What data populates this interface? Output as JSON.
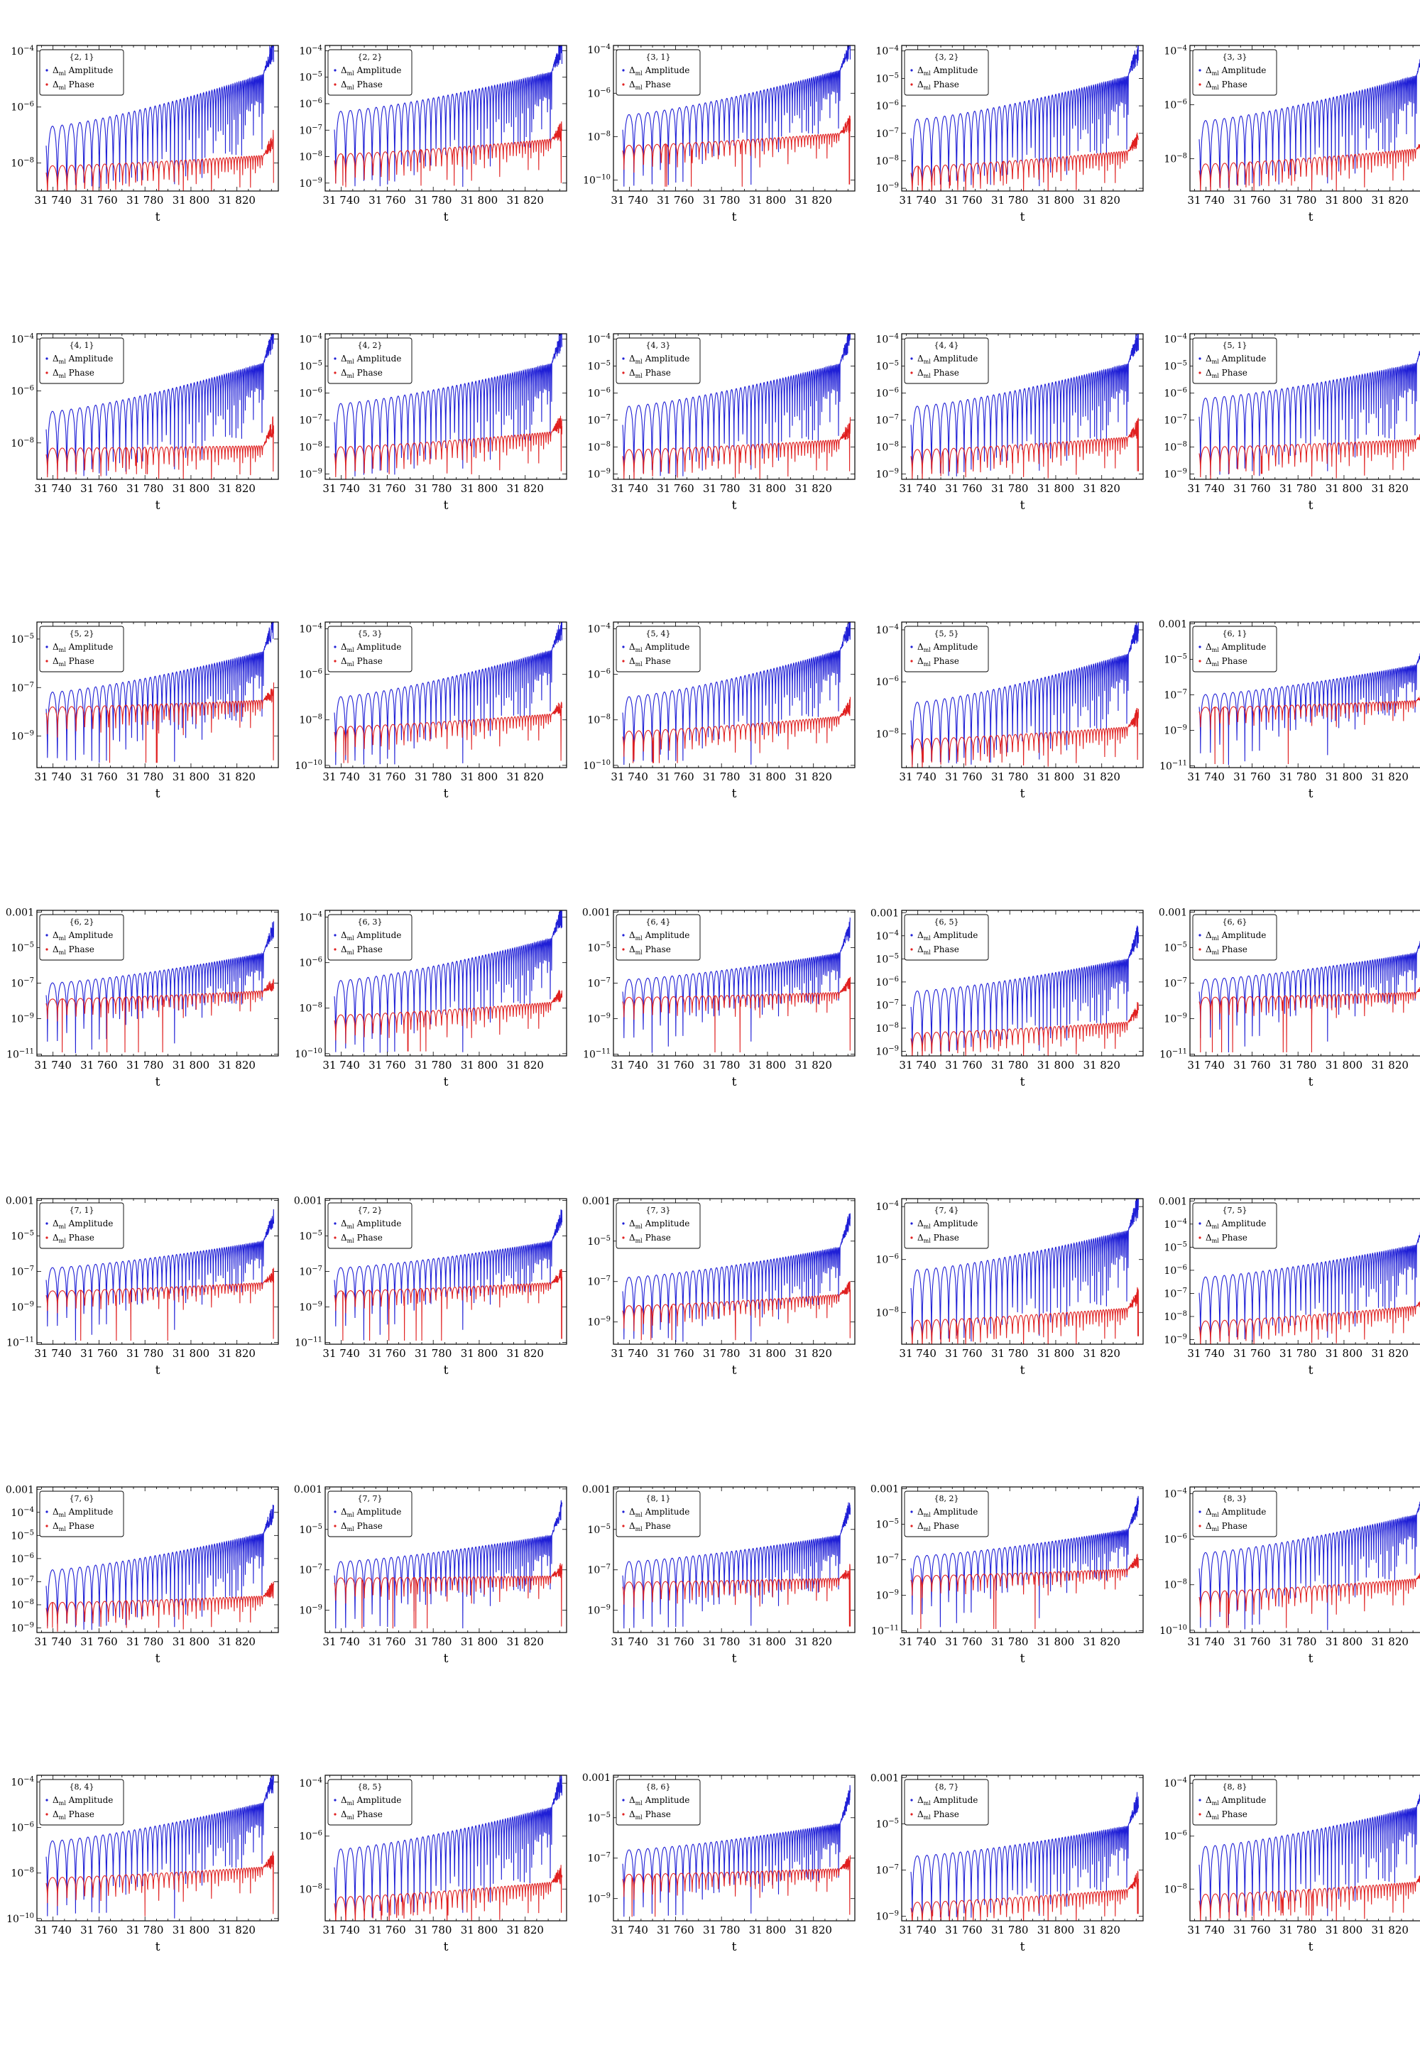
{
  "shared": {
    "xlabel": "t",
    "x_ticks": [
      31740,
      31760,
      31780,
      31800,
      31820
    ],
    "x_tick_labels": [
      "31 740",
      "31 760",
      "31 780",
      "31 800",
      "31 820"
    ],
    "xlim": [
      31733,
      31838
    ],
    "y_scale": "log",
    "legend": [
      {
        "prefix": "Δ",
        "sub": "ml",
        "text": " Amplitude",
        "color": "#1f1fd6"
      },
      {
        "prefix": "Δ",
        "sub": "ml",
        "text": " Phase",
        "color": "#e02020"
      }
    ],
    "legend_position": "top-left",
    "colors": {
      "amplitude": "#1f1fd6",
      "phase": "#e02020",
      "frame": "#000000"
    }
  },
  "chart_data": [
    {
      "type": "line",
      "title": "{2, 1}",
      "ylim_exp": [
        -9,
        -3.8
      ],
      "ytick_exp": [
        -4,
        -6,
        -8
      ],
      "amp": {
        "start": -6.7,
        "end": -4.7,
        "burst": -3.8
      },
      "phase": {
        "start": -8.1,
        "end": -7.7,
        "burst": -7.2
      }
    },
    {
      "type": "line",
      "title": "{2, 2}",
      "ylim_exp": [
        -9.3,
        -3.8
      ],
      "ytick_exp": [
        -4,
        -5,
        -6,
        -7,
        -8,
        -9
      ],
      "amp": {
        "start": -6.3,
        "end": -4.7,
        "burst": -3.9
      },
      "phase": {
        "start": -7.9,
        "end": -7.3,
        "burst": -7.0
      }
    },
    {
      "type": "line",
      "title": "{3, 1}",
      "ylim_exp": [
        -10.5,
        -3.8
      ],
      "ytick_exp": [
        -4,
        -6,
        -8,
        -10
      ],
      "amp": {
        "start": -7.0,
        "end": -4.8,
        "burst": -3.9
      },
      "phase": {
        "start": -8.4,
        "end": -7.8,
        "burst": -7.4
      }
    },
    {
      "type": "line",
      "title": "{3, 2}",
      "ylim_exp": [
        -9.1,
        -3.8
      ],
      "ytick_exp": [
        -4,
        -5,
        -6,
        -7,
        -8,
        -9
      ],
      "amp": {
        "start": -6.5,
        "end": -4.8,
        "burst": -3.9
      },
      "phase": {
        "start": -8.2,
        "end": -7.6,
        "burst": -7.2
      }
    },
    {
      "type": "line",
      "title": "{3, 3}",
      "ylim_exp": [
        -9.2,
        -3.8
      ],
      "ytick_exp": [
        -4,
        -6,
        -8
      ],
      "amp": {
        "start": -6.6,
        "end": -4.8,
        "burst": -3.8
      },
      "phase": {
        "start": -8.2,
        "end": -7.6,
        "burst": -7.3
      }
    },
    {
      "type": "line",
      "title": "{4, 1}",
      "ylim_exp": [
        -9.4,
        -3.8
      ],
      "ytick_exp": [
        -4,
        -6,
        -8
      ],
      "amp": {
        "start": -6.8,
        "end": -4.8,
        "burst": -3.9
      },
      "phase": {
        "start": -8.2,
        "end": -8.1,
        "burst": -7.3
      }
    },
    {
      "type": "line",
      "title": "{4, 2}",
      "ylim_exp": [
        -9.2,
        -3.8
      ],
      "ytick_exp": [
        -4,
        -5,
        -6,
        -7,
        -8,
        -9
      ],
      "amp": {
        "start": -6.4,
        "end": -4.8,
        "burst": -3.9
      },
      "phase": {
        "start": -8.0,
        "end": -7.4,
        "burst": -7.1
      }
    },
    {
      "type": "line",
      "title": "{4, 3}",
      "ylim_exp": [
        -9.2,
        -3.8
      ],
      "ytick_exp": [
        -4,
        -5,
        -6,
        -7,
        -8,
        -9
      ],
      "amp": {
        "start": -6.5,
        "end": -4.8,
        "burst": -3.9
      },
      "phase": {
        "start": -8.1,
        "end": -7.7,
        "burst": -7.3
      }
    },
    {
      "type": "line",
      "title": "{4, 4}",
      "ylim_exp": [
        -9.2,
        -3.8
      ],
      "ytick_exp": [
        -4,
        -5,
        -6,
        -7,
        -8,
        -9
      ],
      "amp": {
        "start": -6.5,
        "end": -4.8,
        "burst": -3.9
      },
      "phase": {
        "start": -8.1,
        "end": -7.6,
        "burst": -7.3
      }
    },
    {
      "type": "line",
      "title": "{5, 1}",
      "ylim_exp": [
        -9.2,
        -3.8
      ],
      "ytick_exp": [
        -4,
        -5,
        -6,
        -7,
        -8,
        -9
      ],
      "amp": {
        "start": -6.2,
        "end": -4.8,
        "burst": -3.9
      },
      "phase": {
        "start": -8.0,
        "end": -7.7,
        "burst": -7.4
      }
    },
    {
      "type": "line",
      "title": "{5, 2}",
      "ylim_exp": [
        -10.3,
        -4.3
      ],
      "ytick_exp": [
        -5,
        -7,
        -9
      ],
      "amp": {
        "start": -7.2,
        "end": -5.4,
        "burst": -4.4
      },
      "phase": {
        "start": -7.8,
        "end": -7.5,
        "burst": -7.2
      }
    },
    {
      "type": "line",
      "title": "{5, 3}",
      "ylim_exp": [
        -10.1,
        -3.7
      ],
      "ytick_exp": [
        -4,
        -6,
        -8,
        -10
      ],
      "amp": {
        "start": -7.0,
        "end": -4.8,
        "burst": -3.9
      },
      "phase": {
        "start": -8.3,
        "end": -7.7,
        "burst": -7.4
      }
    },
    {
      "type": "line",
      "title": "{5, 4}",
      "ylim_exp": [
        -10.1,
        -3.7
      ],
      "ytick_exp": [
        -4,
        -6,
        -8,
        -10
      ],
      "amp": {
        "start": -7.0,
        "end": -4.8,
        "burst": -3.9
      },
      "phase": {
        "start": -8.5,
        "end": -7.8,
        "burst": -7.4
      }
    },
    {
      "type": "line",
      "title": "{5, 5}",
      "ylim_exp": [
        -9.3,
        -3.7
      ],
      "ytick_exp": [
        -4,
        -6,
        -8
      ],
      "amp": {
        "start": -6.8,
        "end": -4.8,
        "burst": -3.9
      },
      "phase": {
        "start": -8.2,
        "end": -7.7,
        "burst": -7.3
      }
    },
    {
      "type": "line",
      "title": "{6, 1}",
      "ylim_exp": [
        -11.1,
        -2.9
      ],
      "ytick_exp": [
        -3,
        -5,
        -7,
        -9,
        -11
      ],
      "amp": {
        "start": -7.0,
        "end": -5.2,
        "burst": -3.9
      },
      "phase": {
        "start": -7.7,
        "end": -7.3,
        "burst": -6.9
      }
    },
    {
      "type": "line",
      "title": "{6, 2}",
      "ylim_exp": [
        -11.1,
        -2.9
      ],
      "ytick_exp": [
        -3,
        -5,
        -7,
        -9,
        -11
      ],
      "amp": {
        "start": -7.0,
        "end": -5.2,
        "burst": -3.9
      },
      "phase": {
        "start": -7.9,
        "end": -7.4,
        "burst": -7.0
      }
    },
    {
      "type": "line",
      "title": "{6, 3}",
      "ylim_exp": [
        -10.1,
        -3.7
      ],
      "ytick_exp": [
        -4,
        -6,
        -8,
        -10
      ],
      "amp": {
        "start": -6.8,
        "end": -4.8,
        "burst": -3.9
      },
      "phase": {
        "start": -8.3,
        "end": -7.7,
        "burst": -7.4
      }
    },
    {
      "type": "line",
      "title": "{6, 4}",
      "ylim_exp": [
        -11.1,
        -2.9
      ],
      "ytick_exp": [
        -3,
        -5,
        -7,
        -9,
        -11
      ],
      "amp": {
        "start": -6.8,
        "end": -5.2,
        "burst": -3.9
      },
      "phase": {
        "start": -7.8,
        "end": -7.5,
        "burst": -7.0
      }
    },
    {
      "type": "line",
      "title": "{6, 5}",
      "ylim_exp": [
        -9.2,
        -2.9
      ],
      "ytick_exp": [
        -3,
        -4,
        -5,
        -6,
        -7,
        -8,
        -9
      ],
      "amp": {
        "start": -6.4,
        "end": -4.9,
        "burst": -3.9
      },
      "phase": {
        "start": -8.2,
        "end": -7.7,
        "burst": -7.2
      }
    },
    {
      "type": "line",
      "title": "{6, 6}",
      "ylim_exp": [
        -11.1,
        -2.9
      ],
      "ytick_exp": [
        -3,
        -5,
        -7,
        -9,
        -11
      ],
      "amp": {
        "start": -6.8,
        "end": -5.2,
        "burst": -3.9
      },
      "phase": {
        "start": -7.8,
        "end": -7.5,
        "burst": -7.0
      }
    },
    {
      "type": "line",
      "title": "{7, 1}",
      "ylim_exp": [
        -11.1,
        -2.9
      ],
      "ytick_exp": [
        -3,
        -5,
        -7,
        -9,
        -11
      ],
      "amp": {
        "start": -6.8,
        "end": -5.2,
        "burst": -3.9
      },
      "phase": {
        "start": -8.1,
        "end": -7.6,
        "burst": -7.2
      }
    },
    {
      "type": "line",
      "title": "{7, 2}",
      "ylim_exp": [
        -11.1,
        -2.9
      ],
      "ytick_exp": [
        -3,
        -5,
        -7,
        -9,
        -11
      ],
      "amp": {
        "start": -6.8,
        "end": -5.2,
        "burst": -3.9
      },
      "phase": {
        "start": -8.1,
        "end": -7.6,
        "burst": -7.2
      }
    },
    {
      "type": "line",
      "title": "{7, 3}",
      "ylim_exp": [
        -10.1,
        -2.9
      ],
      "ytick_exp": [
        -3,
        -5,
        -7,
        -9
      ],
      "amp": {
        "start": -6.8,
        "end": -5.2,
        "burst": -3.9
      },
      "phase": {
        "start": -8.2,
        "end": -7.6,
        "burst": -7.2
      }
    },
    {
      "type": "line",
      "title": "{7, 4}",
      "ylim_exp": [
        -9.2,
        -3.7
      ],
      "ytick_exp": [
        -4,
        -6,
        -8
      ],
      "amp": {
        "start": -6.4,
        "end": -4.8,
        "burst": -3.9
      },
      "phase": {
        "start": -8.3,
        "end": -7.8,
        "burst": -7.4
      }
    },
    {
      "type": "line",
      "title": "{7, 5}",
      "ylim_exp": [
        -9.2,
        -2.9
      ],
      "ytick_exp": [
        -3,
        -4,
        -5,
        -6,
        -7,
        -8,
        -9
      ],
      "amp": {
        "start": -6.3,
        "end": -4.8,
        "burst": -3.9
      },
      "phase": {
        "start": -8.2,
        "end": -7.5,
        "burst": -7.3
      }
    },
    {
      "type": "line",
      "title": "{7, 6}",
      "ylim_exp": [
        -9.2,
        -2.9
      ],
      "ytick_exp": [
        -3,
        -4,
        -5,
        -6,
        -7,
        -8,
        -9
      ],
      "amp": {
        "start": -6.5,
        "end": -4.8,
        "burst": -3.9
      },
      "phase": {
        "start": -7.9,
        "end": -7.6,
        "burst": -7.3
      }
    },
    {
      "type": "line",
      "title": "{7, 7}",
      "ylim_exp": [
        -10.1,
        -2.9
      ],
      "ytick_exp": [
        -3,
        -5,
        -7,
        -9
      ],
      "amp": {
        "start": -6.6,
        "end": -5.2,
        "burst": -3.9
      },
      "phase": {
        "start": -7.4,
        "end": -7.3,
        "burst": -7.0
      }
    },
    {
      "type": "line",
      "title": "{8, 1}",
      "ylim_exp": [
        -10.1,
        -2.9
      ],
      "ytick_exp": [
        -3,
        -5,
        -7,
        -9
      ],
      "amp": {
        "start": -6.6,
        "end": -5.2,
        "burst": -3.9
      },
      "phase": {
        "start": -7.6,
        "end": -7.4,
        "burst": -7.1
      }
    },
    {
      "type": "line",
      "title": "{8, 2}",
      "ylim_exp": [
        -11.1,
        -2.9
      ],
      "ytick_exp": [
        -3,
        -5,
        -7,
        -9,
        -11
      ],
      "amp": {
        "start": -6.8,
        "end": -5.2,
        "burst": -3.9
      },
      "phase": {
        "start": -7.9,
        "end": -7.5,
        "burst": -7.0
      }
    },
    {
      "type": "line",
      "title": "{8, 3}",
      "ylim_exp": [
        -10.1,
        -3.7
      ],
      "ytick_exp": [
        -4,
        -6,
        -8,
        -10
      ],
      "amp": {
        "start": -6.6,
        "end": -4.8,
        "burst": -3.9
      },
      "phase": {
        "start": -8.3,
        "end": -7.7,
        "burst": -7.4
      }
    },
    {
      "type": "line",
      "title": "{8, 4}",
      "ylim_exp": [
        -10.1,
        -3.7
      ],
      "ytick_exp": [
        -4,
        -6,
        -8,
        -10
      ],
      "amp": {
        "start": -6.6,
        "end": -4.8,
        "burst": -3.9
      },
      "phase": {
        "start": -8.2,
        "end": -7.7,
        "burst": -7.4
      }
    },
    {
      "type": "line",
      "title": "{8, 5}",
      "ylim_exp": [
        -9.2,
        -3.7
      ],
      "ytick_exp": [
        -4,
        -6,
        -8
      ],
      "amp": {
        "start": -6.5,
        "end": -4.8,
        "burst": -3.9
      },
      "phase": {
        "start": -8.3,
        "end": -7.7,
        "burst": -7.4
      }
    },
    {
      "type": "line",
      "title": "{8, 6}",
      "ylim_exp": [
        -10.1,
        -2.9
      ],
      "ytick_exp": [
        -3,
        -5,
        -7,
        -9
      ],
      "amp": {
        "start": -6.6,
        "end": -5.2,
        "burst": -3.9
      },
      "phase": {
        "start": -7.8,
        "end": -7.5,
        "burst": -7.2
      }
    },
    {
      "type": "line",
      "title": "{8, 7}",
      "ylim_exp": [
        -9.2,
        -2.9
      ],
      "ytick_exp": [
        -3,
        -5,
        -7,
        -9
      ],
      "amp": {
        "start": -6.4,
        "end": -5.0,
        "burst": -3.9
      },
      "phase": {
        "start": -8.4,
        "end": -7.8,
        "burst": -7.4
      }
    },
    {
      "type": "line",
      "title": "{8, 8}",
      "ylim_exp": [
        -9.2,
        -3.7
      ],
      "ytick_exp": [
        -4,
        -6,
        -8
      ],
      "amp": {
        "start": -6.4,
        "end": -4.8,
        "burst": -3.9
      },
      "phase": {
        "start": -8.2,
        "end": -7.7,
        "burst": -7.4
      }
    }
  ]
}
